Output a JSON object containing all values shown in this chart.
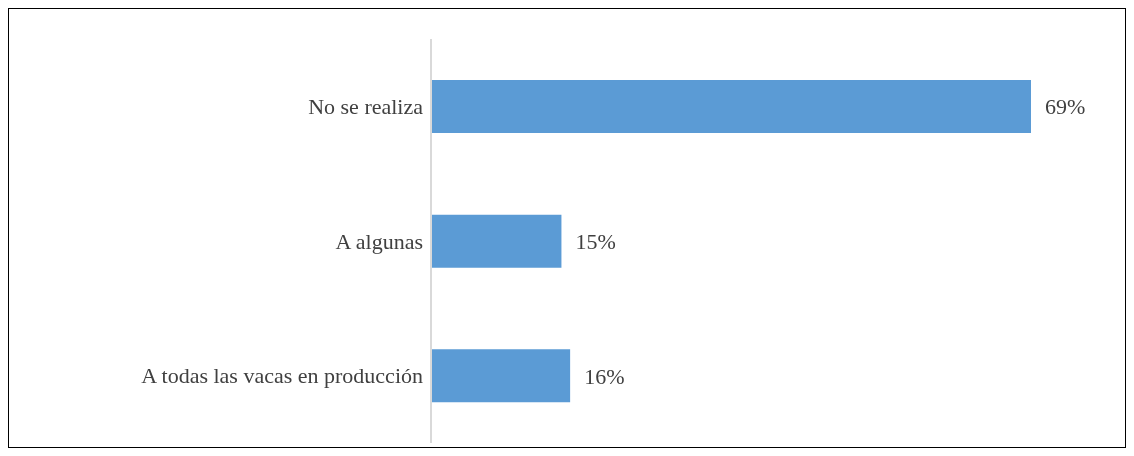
{
  "chart_data": {
    "type": "bar",
    "orientation": "horizontal",
    "categories": [
      "No se realiza",
      "A algunas",
      "A todas las vacas en producción"
    ],
    "values": [
      69,
      15,
      16
    ],
    "value_labels": [
      "69%",
      "15%",
      "16%"
    ],
    "color": "#5b9bd5"
  }
}
